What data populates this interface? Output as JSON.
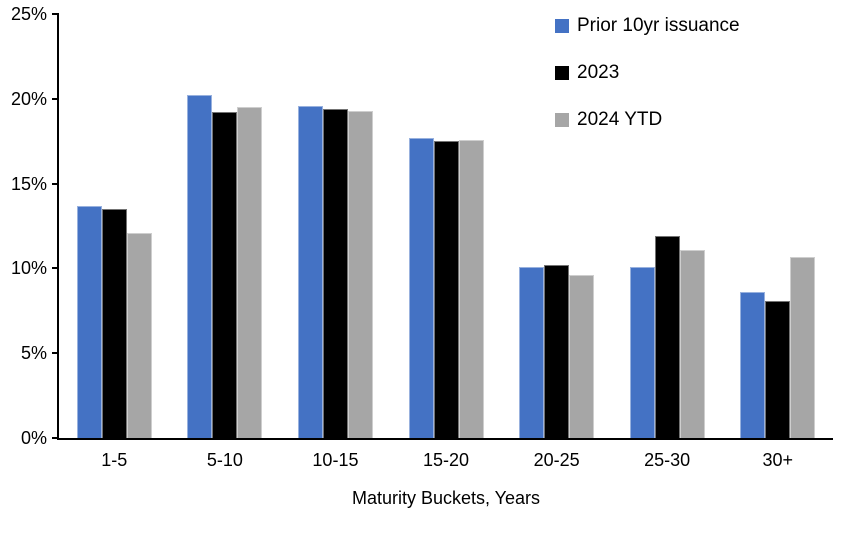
{
  "chart_data": {
    "type": "bar",
    "categories": [
      "1-5",
      "5-10",
      "10-15",
      "15-20",
      "20-25",
      "25-30",
      "30+"
    ],
    "series": [
      {
        "name": "Prior 10yr issuance",
        "color": "#4472C4",
        "values": [
          13.7,
          20.2,
          19.6,
          17.7,
          10.1,
          10.1,
          8.6
        ]
      },
      {
        "name": "2023",
        "color": "#000000",
        "values": [
          13.5,
          19.2,
          19.4,
          17.5,
          10.2,
          11.9,
          8.1
        ]
      },
      {
        "name": "2024 YTD",
        "color": "#A6A6A6",
        "values": [
          12.1,
          19.5,
          19.3,
          17.6,
          9.6,
          11.1,
          10.7
        ]
      }
    ],
    "xlabel": "Maturity Buckets, Years",
    "ylabel": "",
    "ylim": [
      0,
      25
    ],
    "y_ticks": [
      {
        "value": 0,
        "label": "0%"
      },
      {
        "value": 5,
        "label": "5%"
      },
      {
        "value": 10,
        "label": "10%"
      },
      {
        "value": 15,
        "label": "15%"
      },
      {
        "value": 20,
        "label": "20%"
      },
      {
        "value": 25,
        "label": "25%"
      }
    ],
    "grid": false,
    "legend_position": "top-right",
    "axis_color": "#000000",
    "text_color": "#000000"
  }
}
